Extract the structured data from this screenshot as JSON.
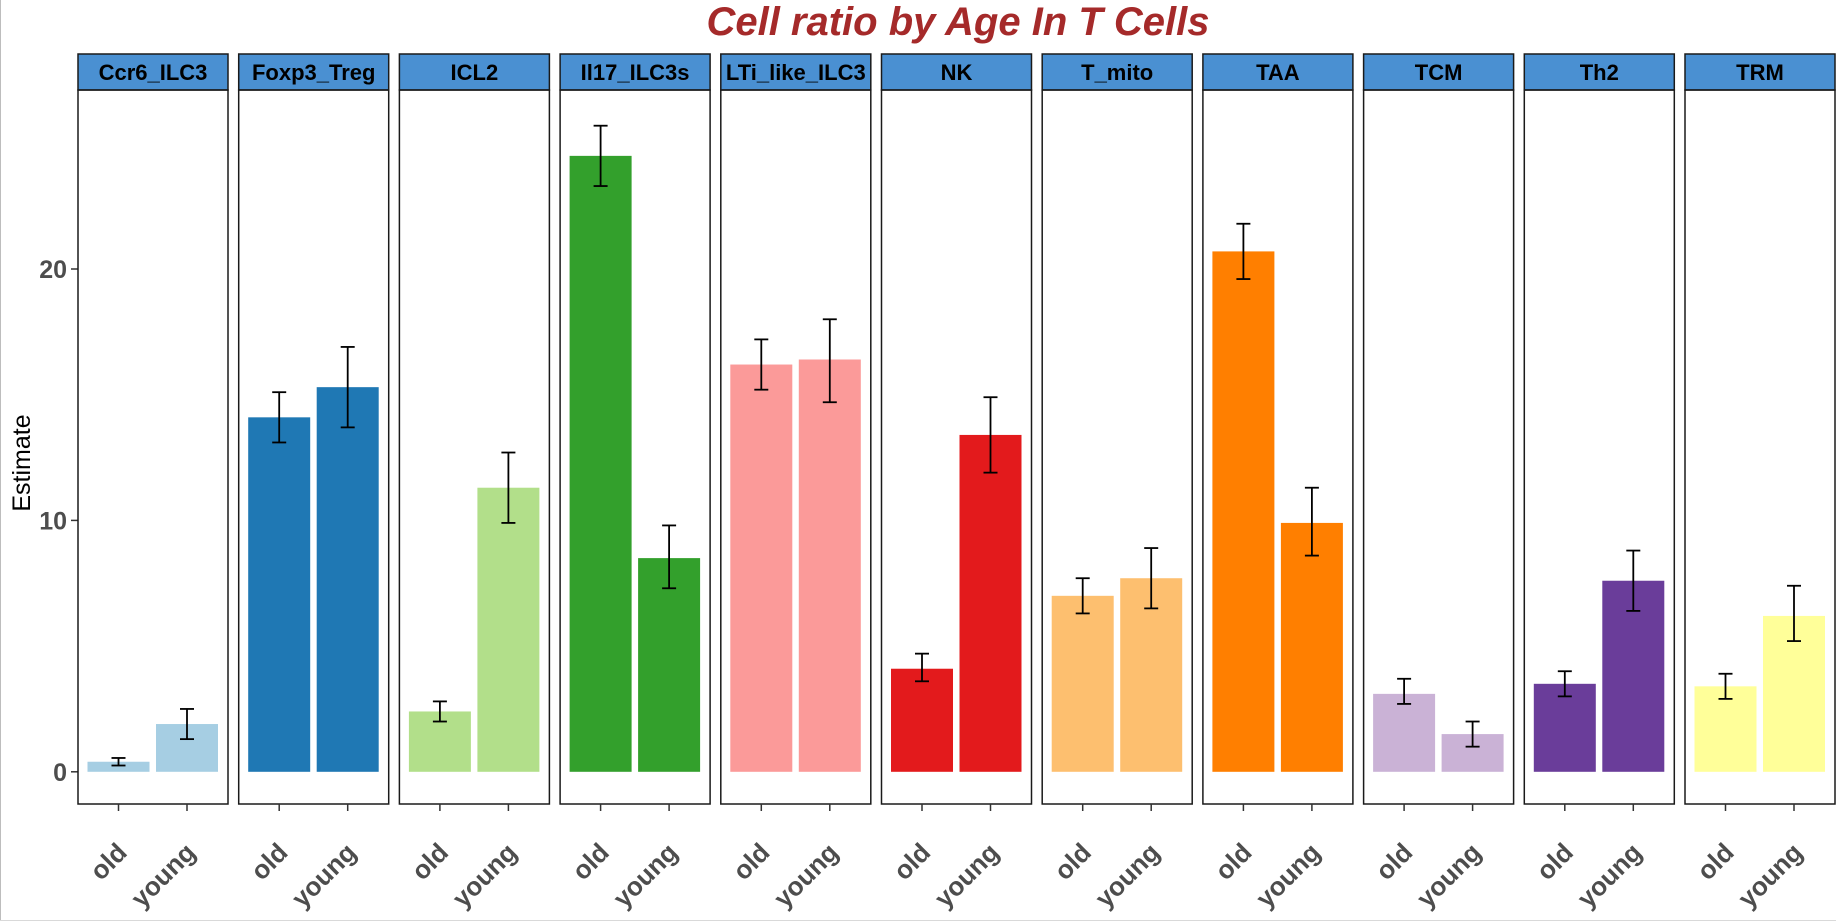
{
  "chart_data": {
    "type": "bar",
    "title": "Cell ratio by Age In T Cells",
    "xlabel": "",
    "ylabel": "Estimate",
    "ylim": [
      -1.3,
      27.3
    ],
    "yticks": [
      0,
      10,
      20
    ],
    "categories": [
      "old",
      "young"
    ],
    "panels": [
      {
        "name": "Ccr6_ILC3",
        "color": "#a6cee3",
        "values": [
          0.4,
          1.9
        ],
        "errors": [
          [
            0.25,
            0.55
          ],
          [
            1.3,
            2.5
          ]
        ]
      },
      {
        "name": "Foxp3_Treg",
        "color": "#1f78b4",
        "values": [
          14.1,
          15.3
        ],
        "errors": [
          [
            13.1,
            15.1
          ],
          [
            13.7,
            16.9
          ]
        ]
      },
      {
        "name": "ICL2",
        "color": "#b2df8a",
        "values": [
          2.4,
          11.3
        ],
        "errors": [
          [
            2.0,
            2.8
          ],
          [
            9.9,
            12.7
          ]
        ]
      },
      {
        "name": "Il17_ILC3s",
        "color": "#33a02c",
        "values": [
          24.5,
          8.5
        ],
        "errors": [
          [
            23.3,
            25.7
          ],
          [
            7.3,
            9.8
          ]
        ]
      },
      {
        "name": "LTi_like_ILC3",
        "color": "#fb9a99",
        "values": [
          16.2,
          16.4
        ],
        "errors": [
          [
            15.2,
            17.2
          ],
          [
            14.7,
            18.0
          ]
        ]
      },
      {
        "name": "NK",
        "color": "#e31a1c",
        "values": [
          4.1,
          13.4
        ],
        "errors": [
          [
            3.6,
            4.7
          ],
          [
            11.9,
            14.9
          ]
        ]
      },
      {
        "name": "T_mito",
        "color": "#fdbf6f",
        "values": [
          7.0,
          7.7
        ],
        "errors": [
          [
            6.3,
            7.7
          ],
          [
            6.5,
            8.9
          ]
        ]
      },
      {
        "name": "TAA",
        "color": "#ff7f00",
        "values": [
          20.7,
          9.9
        ],
        "errors": [
          [
            19.6,
            21.8
          ],
          [
            8.6,
            11.3
          ]
        ]
      },
      {
        "name": "TCM",
        "color": "#cab2d6",
        "values": [
          3.1,
          1.5
        ],
        "errors": [
          [
            2.7,
            3.7
          ],
          [
            1.0,
            2.0
          ]
        ]
      },
      {
        "name": "Th2",
        "color": "#6a3d9a",
        "values": [
          3.5,
          7.6
        ],
        "errors": [
          [
            3.0,
            4.0
          ],
          [
            6.4,
            8.8
          ]
        ]
      },
      {
        "name": "TRM",
        "color": "#ffff99",
        "values": [
          3.4,
          6.2
        ],
        "errors": [
          [
            2.9,
            3.9
          ],
          [
            5.2,
            7.4
          ]
        ]
      }
    ],
    "strip_color": "#4a90d2",
    "grid": false,
    "legend": "none"
  }
}
